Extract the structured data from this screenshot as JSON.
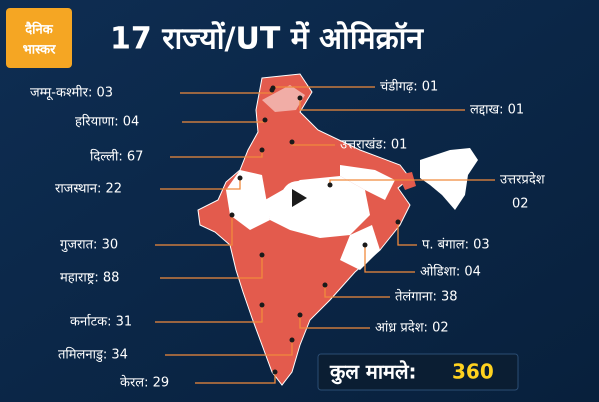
{
  "logo": {
    "line1": "दैनिक",
    "line2": "भास्कर"
  },
  "title": "17 राज्यों/UT में ओमिक्रॉन",
  "labels": [
    {
      "lines": [
        "जम्मू-कश्मीर: 03"
      ]
    },
    {
      "lines": [
        "हरियाणा: 04"
      ]
    },
    {
      "lines": [
        "दिल्ली: 67"
      ]
    },
    {
      "lines": [
        "राजस्थान: 22"
      ]
    },
    {
      "lines": [
        "गुजरात: 30"
      ]
    },
    {
      "lines": [
        "महाराष्ट्र: 88"
      ]
    },
    {
      "lines": [
        "कर्नाटक: 31"
      ]
    },
    {
      "lines": [
        "तमिलनाडु: 34"
      ]
    },
    {
      "lines": [
        "केरल: 29"
      ]
    },
    {
      "lines": [
        "चंडीगढ़: 01"
      ]
    },
    {
      "lines": [
        "लद्दाख: 01"
      ]
    },
    {
      "lines": [
        "उत्तराखंड: 01"
      ]
    },
    {
      "lines": [
        "उत्तरप्रदेश",
        "02"
      ]
    },
    {
      "lines": [
        "प. बंगाल: 03"
      ]
    },
    {
      "lines": [
        "ओडिशा: 04"
      ]
    },
    {
      "lines": [
        "तेलंगाना: 38"
      ]
    },
    {
      "lines": [
        "आंध्र प्रदेश: 02"
      ]
    }
  ],
  "total": {
    "label": "कुल मामले:",
    "value": "360"
  }
}
